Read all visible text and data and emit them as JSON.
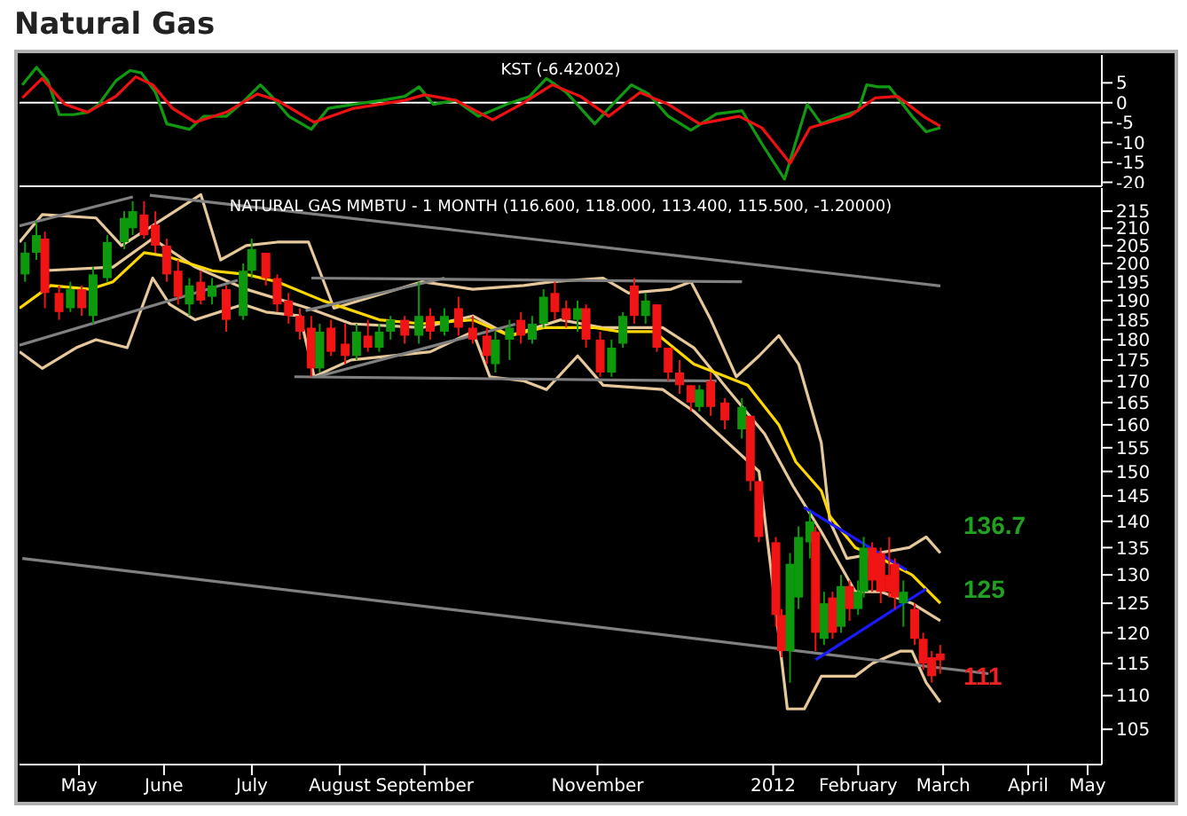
{
  "chart_data": [
    {
      "type": "line",
      "title": "Natural Gas",
      "annotations": [
        "KST (-6.42002)"
      ],
      "tick_labels": "y",
      "xlim": [
        "2011-04-25",
        "2012-05-11"
      ],
      "ylim": [
        -21,
        12
      ],
      "yticks": [
        5,
        0,
        -5,
        -10,
        -15,
        -20
      ],
      "ref_lines": [
        {
          "axis": "y",
          "value": 0,
          "color": "#ffffff"
        }
      ],
      "series": [
        {
          "color": "#119911",
          "x": [
            "2011-04-26",
            "2011-05-01",
            "2011-05-05",
            "2011-05-09",
            "2011-05-14",
            "2011-05-19",
            "2011-05-23",
            "2011-05-29",
            "2011-06-03",
            "2011-06-07",
            "2011-06-12",
            "2011-06-16",
            "2011-06-24",
            "2011-06-29",
            "2011-07-07",
            "2011-07-12",
            "2011-07-19",
            "2011-07-23",
            "2011-07-29",
            "2011-08-06",
            "2011-08-12",
            "2011-08-21",
            "2011-08-31",
            "2011-09-08",
            "2011-09-13",
            "2011-09-18",
            "2011-09-26",
            "2011-10-04",
            "2011-10-14",
            "2011-10-22",
            "2011-10-28",
            "2011-11-04",
            "2011-11-14",
            "2011-11-19",
            "2011-11-27",
            "2011-12-03",
            "2011-12-10",
            "2011-12-18",
            "2011-12-27",
            "2012-01-05",
            "2012-01-12",
            "2012-01-20",
            "2012-01-28",
            "2012-02-02",
            "2012-02-09",
            "2012-02-15",
            "2012-02-18",
            "2012-02-22",
            "2012-02-26",
            "2012-03-05",
            "2012-03-10",
            "2012-03-15"
          ],
          "values": [
            4.5,
            8.9,
            5.5,
            -3,
            -3,
            -2.4,
            -0.4,
            5.5,
            8.1,
            7.5,
            2.6,
            -5.3,
            -6.7,
            -3.4,
            -3.4,
            -0.4,
            4.5,
            1.6,
            -3.4,
            -6.7,
            -1.4,
            -0.4,
            0.6,
            1.6,
            4,
            -0.4,
            0.6,
            -3.4,
            -0.4,
            1.6,
            6.1,
            2.6,
            -5.3,
            -1.4,
            4.5,
            2.2,
            -3.4,
            -6.9,
            -2.8,
            -2,
            -10.3,
            -19.2,
            -0.4,
            -5.3,
            -3.4,
            -2,
            4.5,
            4,
            4,
            -3.4,
            -7.3,
            -6.3
          ]
        },
        {
          "color": "#ee1111",
          "x": [
            "2011-04-26",
            "2011-05-03",
            "2011-05-11",
            "2011-05-19",
            "2011-05-29",
            "2011-06-05",
            "2011-06-11",
            "2011-06-18",
            "2011-06-26",
            "2011-07-07",
            "2011-07-18",
            "2011-07-25",
            "2011-08-07",
            "2011-08-21",
            "2011-09-08",
            "2011-09-15",
            "2011-09-26",
            "2011-10-09",
            "2011-10-19",
            "2011-10-30",
            "2011-11-09",
            "2011-11-19",
            "2011-11-30",
            "2011-12-10",
            "2011-12-21",
            "2012-01-04",
            "2012-01-12",
            "2012-01-22",
            "2012-01-29",
            "2012-02-12",
            "2012-02-21",
            "2012-02-29",
            "2012-03-09",
            "2012-03-15"
          ],
          "values": [
            1.2,
            6.1,
            -0.4,
            -2.4,
            1.6,
            6.5,
            4.5,
            -1.4,
            -4.9,
            -2.4,
            2.2,
            0.6,
            -4.9,
            -1.4,
            0.6,
            2,
            0.6,
            -4.3,
            -0.4,
            4.5,
            1.6,
            -3.4,
            2.6,
            -0.4,
            -5.3,
            -3.4,
            -6.3,
            -15.2,
            -6.3,
            -3.4,
            1.2,
            1.6,
            -3.4,
            -5.9
          ]
        }
      ]
    },
    {
      "type": "candlestick",
      "title": "NATURAL GAS MMBTU - 1 MONTH (116.600, 118.000, 113.400, 115.500, -1.20000)",
      "log": true,
      "xlim": [
        "2011-04-25",
        "2012-05-11"
      ],
      "ylim": [
        100,
        222
      ],
      "yticks": [
        105,
        110,
        115,
        120,
        125,
        130,
        135,
        140,
        145,
        150,
        155,
        160,
        165,
        170,
        175,
        180,
        185,
        190,
        195,
        200,
        205,
        210,
        215
      ],
      "xticks": [
        {
          "value": "2011-05-16",
          "label": "May"
        },
        {
          "value": "2011-06-15",
          "label": "June"
        },
        {
          "value": "2011-07-16",
          "label": "July"
        },
        {
          "value": "2011-08-16",
          "label": "August"
        },
        {
          "value": "2011-09-15",
          "label": "September"
        },
        {
          "value": "2011-11-15",
          "label": "November"
        },
        {
          "value": "2012-01-16",
          "label": "2012"
        },
        {
          "value": "2012-02-15",
          "label": "February"
        },
        {
          "value": "2012-03-16",
          "label": "March"
        },
        {
          "value": "2012-04-15",
          "label": "April"
        },
        {
          "value": "2012-05-06",
          "label": "May"
        }
      ],
      "annotations": [
        "136.7",
        "125",
        "111"
      ],
      "x": [
        "2011-04-27",
        "2011-05-01",
        "2011-05-04",
        "2011-05-09",
        "2011-05-13",
        "2011-05-17",
        "2011-05-21",
        "2011-05-26",
        "2011-06-01",
        "2011-06-04",
        "2011-06-08",
        "2011-06-12",
        "2011-06-16",
        "2011-06-20",
        "2011-06-24",
        "2011-06-28",
        "2011-07-02",
        "2011-07-07",
        "2011-07-13",
        "2011-07-16",
        "2011-07-21",
        "2011-07-25",
        "2011-07-29",
        "2011-08-02",
        "2011-08-06",
        "2011-08-09",
        "2011-08-13",
        "2011-08-18",
        "2011-08-22",
        "2011-08-26",
        "2011-08-30",
        "2011-09-03",
        "2011-09-08",
        "2011-09-13",
        "2011-09-17",
        "2011-09-22",
        "2011-09-27",
        "2011-10-02",
        "2011-10-07",
        "2011-10-10",
        "2011-10-15",
        "2011-10-19",
        "2011-10-23",
        "2011-10-27",
        "2011-10-31",
        "2011-11-04",
        "2011-11-08",
        "2011-11-11",
        "2011-11-16",
        "2011-11-20",
        "2011-11-24",
        "2011-11-28",
        "2011-12-02",
        "2011-12-06",
        "2011-12-10",
        "2011-12-14",
        "2011-12-18",
        "2011-12-21",
        "2011-12-25",
        "2011-12-30",
        "2012-01-05",
        "2012-01-08",
        "2012-01-11",
        "2012-01-17",
        "2012-01-19",
        "2012-01-22",
        "2012-01-25",
        "2012-01-29",
        "2012-01-31",
        "2012-02-03",
        "2012-02-06",
        "2012-02-09",
        "2012-02-12",
        "2012-02-15",
        "2012-02-17",
        "2012-02-20",
        "2012-02-23",
        "2012-02-26",
        "2012-02-28",
        "2012-03-02",
        "2012-03-06",
        "2012-03-09",
        "2012-03-12",
        "2012-03-15"
      ],
      "ohlc": [
        [
          197,
          206,
          195,
          203
        ],
        [
          203,
          212,
          201,
          208
        ],
        [
          207,
          209,
          188,
          192
        ],
        [
          192,
          194,
          185,
          187
        ],
        [
          188,
          195,
          187,
          193
        ],
        [
          193,
          194,
          186,
          188
        ],
        [
          186,
          199,
          184,
          197
        ],
        [
          196,
          208,
          195,
          206
        ],
        [
          206,
          215,
          204,
          213
        ],
        [
          210,
          218,
          208,
          215
        ],
        [
          214,
          218,
          207,
          208
        ],
        [
          211,
          215,
          203,
          205
        ],
        [
          205,
          207,
          195,
          197
        ],
        [
          198,
          201,
          189,
          191
        ],
        [
          189,
          196,
          186,
          194
        ],
        [
          195,
          198,
          189,
          190
        ],
        [
          191,
          196,
          189,
          194
        ],
        [
          193,
          194,
          182,
          185
        ],
        [
          186,
          200,
          185,
          198
        ],
        [
          198,
          207,
          196,
          204
        ],
        [
          203,
          203,
          194,
          196
        ],
        [
          196,
          197,
          187,
          189
        ],
        [
          190,
          192,
          184,
          186
        ],
        [
          186,
          188,
          180,
          182
        ],
        [
          183,
          186,
          171,
          173
        ],
        [
          173,
          184,
          172,
          182
        ],
        [
          183,
          185,
          176,
          177
        ],
        [
          179,
          184,
          174,
          176
        ],
        [
          176,
          184,
          175,
          182
        ],
        [
          181,
          185,
          177,
          178
        ],
        [
          178,
          184,
          177,
          182
        ],
        [
          182,
          186,
          180,
          185
        ],
        [
          185,
          186,
          179,
          181
        ],
        [
          181,
          195,
          179,
          186
        ],
        [
          186,
          188,
          180,
          182
        ],
        [
          182,
          188,
          181,
          186
        ],
        [
          188,
          191,
          181,
          183
        ],
        [
          183,
          186,
          179,
          180
        ],
        [
          181,
          183,
          174,
          176
        ],
        [
          174,
          182,
          172,
          180
        ],
        [
          180,
          185,
          175,
          183
        ],
        [
          185,
          187,
          179,
          181
        ],
        [
          180,
          186,
          179,
          184
        ],
        [
          184,
          193,
          183,
          191
        ],
        [
          192,
          195,
          185,
          187
        ],
        [
          188,
          190,
          183,
          185
        ],
        [
          185,
          190,
          182,
          188
        ],
        [
          188,
          189,
          178,
          180
        ],
        [
          180,
          182,
          171,
          172
        ],
        [
          172,
          180,
          171,
          178
        ],
        [
          179,
          187,
          178,
          186
        ],
        [
          194,
          196,
          184,
          186
        ],
        [
          186,
          192,
          184,
          190
        ],
        [
          189,
          189,
          177,
          178
        ],
        [
          178,
          178,
          170,
          172
        ],
        [
          172,
          175,
          167,
          169
        ],
        [
          169,
          169,
          163,
          165
        ],
        [
          164,
          169,
          163,
          168
        ],
        [
          170,
          172,
          162,
          164
        ],
        [
          165,
          166,
          159,
          161
        ],
        [
          159,
          166,
          157,
          164
        ],
        [
          162,
          162,
          146,
          148
        ],
        [
          148,
          148,
          136,
          137
        ],
        [
          136,
          137,
          121,
          123
        ],
        [
          123,
          124,
          116,
          117
        ],
        [
          117,
          134,
          112,
          132
        ],
        [
          126,
          139,
          124,
          137
        ],
        [
          136,
          142,
          133,
          140
        ],
        [
          138,
          139,
          117,
          120
        ],
        [
          119,
          127,
          118,
          125
        ],
        [
          126,
          127,
          119,
          120
        ],
        [
          121,
          130,
          120,
          128
        ],
        [
          128,
          129,
          122,
          124
        ],
        [
          124,
          129,
          123,
          127
        ],
        [
          127,
          137,
          126,
          135
        ],
        [
          135,
          136,
          127,
          129
        ],
        [
          134,
          135,
          125,
          127
        ],
        [
          130,
          137,
          126,
          127
        ],
        [
          132,
          133,
          124,
          126
        ],
        [
          125,
          129,
          121,
          127
        ],
        [
          124,
          125,
          118,
          119
        ],
        [
          119,
          120,
          114,
          115
        ],
        [
          116,
          117,
          112,
          113
        ],
        [
          116.6,
          118,
          113.4,
          115.5
        ]
      ],
      "series": [
        {
          "type": "line",
          "color": "#e6c89a",
          "x": [
            "2011-04-25",
            "2011-05-03",
            "2011-05-22",
            "2011-05-31",
            "2011-06-28",
            "2011-07-05",
            "2011-07-14",
            "2011-07-25",
            "2011-08-05",
            "2011-08-14",
            "2011-09-14",
            "2011-10-02",
            "2011-10-20",
            "2011-10-30",
            "2011-11-17",
            "2011-11-26",
            "2011-12-11",
            "2011-12-18",
            "2011-12-25",
            "2012-01-03",
            "2012-01-11",
            "2012-01-18",
            "2012-01-25",
            "2012-02-02",
            "2012-02-05",
            "2012-02-11",
            "2012-03-04",
            "2012-03-10",
            "2012-03-15"
          ],
          "values": [
            206,
            214,
            213,
            205,
            220,
            201,
            205,
            206,
            206,
            188,
            195,
            193,
            194,
            195,
            196,
            192,
            193,
            195,
            185,
            171,
            176,
            181,
            174,
            156,
            140,
            133,
            135,
            137,
            134
          ]
        },
        {
          "type": "line",
          "color": "#e6c89a",
          "x": [
            "2011-05-03",
            "2011-05-28",
            "2011-06-11",
            "2011-06-26",
            "2011-07-14",
            "2011-08-05",
            "2011-08-20",
            "2011-09-14",
            "2011-10-02",
            "2011-10-15",
            "2011-11-02",
            "2011-11-17",
            "2011-12-08",
            "2011-12-19",
            "2011-12-31",
            "2012-01-13",
            "2012-01-23",
            "2012-02-02",
            "2012-02-14",
            "2012-02-23",
            "2012-03-05",
            "2012-03-15"
          ],
          "values": [
            198,
            199,
            207,
            199,
            193,
            188,
            184,
            183,
            186,
            181,
            185,
            183,
            183,
            178,
            168,
            158,
            147,
            138,
            127,
            127,
            125,
            122
          ]
        },
        {
          "type": "line",
          "color": "#e6c89a",
          "x": [
            "2011-04-25",
            "2011-05-03",
            "2011-05-15",
            "2011-05-22",
            "2011-06-02",
            "2011-06-11",
            "2011-06-17",
            "2011-06-26",
            "2011-07-13",
            "2011-07-21",
            "2011-08-02",
            "2011-08-07",
            "2011-08-20",
            "2011-09-17",
            "2011-10-02",
            "2011-10-08",
            "2011-10-20",
            "2011-10-28",
            "2011-11-08",
            "2011-11-17",
            "2011-12-08",
            "2011-12-19",
            "2012-01-11",
            "2012-01-15",
            "2012-01-21",
            "2012-01-27",
            "2012-02-02",
            "2012-02-14",
            "2012-02-20",
            "2012-03-01",
            "2012-03-05",
            "2012-03-10",
            "2012-03-15"
          ],
          "values": [
            177,
            173,
            178,
            180,
            178,
            196,
            189,
            185,
            189,
            187,
            186,
            171,
            175,
            177,
            182,
            171,
            170,
            168,
            176,
            169,
            168,
            163,
            150,
            132,
            108,
            108,
            113,
            113,
            115,
            117,
            117,
            112,
            109
          ]
        },
        {
          "type": "line",
          "color": "#ffd700",
          "x": [
            "2011-04-25",
            "2011-05-06",
            "2011-05-20",
            "2011-05-28",
            "2011-06-08",
            "2011-06-16",
            "2011-07-02",
            "2011-07-14",
            "2011-07-25",
            "2011-08-10",
            "2011-08-30",
            "2011-09-14",
            "2011-10-02",
            "2011-10-15",
            "2011-10-27",
            "2011-11-14",
            "2011-11-23",
            "2011-12-05",
            "2011-12-19",
            "2012-01-07",
            "2012-01-18",
            "2012-01-24",
            "2012-02-02",
            "2012-02-05",
            "2012-02-14",
            "2012-02-23",
            "2012-03-05",
            "2012-03-15"
          ],
          "values": [
            188,
            194,
            193,
            195,
            203,
            202,
            198,
            197,
            195,
            190,
            185,
            184,
            185,
            181,
            183,
            183,
            182,
            182,
            174,
            169,
            160,
            152,
            146,
            141,
            135,
            133,
            130,
            125
          ]
        },
        {
          "type": "line",
          "color": "#808080",
          "x": [
            "2011-04-25",
            "2011-07-11"
          ],
          "values": [
            178.6,
            195.4
          ]
        },
        {
          "type": "line",
          "color": "#808080",
          "x": [
            "2011-04-25",
            "2011-06-04"
          ],
          "values": [
            210.7,
            219.3
          ]
        },
        {
          "type": "line",
          "color": "#808080",
          "x": [
            "2011-06-10",
            "2012-03-15"
          ],
          "values": [
            219.8,
            193.9
          ]
        },
        {
          "type": "line",
          "color": "#808080",
          "x": [
            "2011-08-06",
            "2012-01-05"
          ],
          "values": [
            196,
            195
          ]
        },
        {
          "type": "line",
          "color": "#808080",
          "x": [
            "2011-07-31",
            "2011-12-27"
          ],
          "values": [
            171,
            170
          ]
        },
        {
          "type": "line",
          "color": "#808080",
          "x": [
            "2011-08-04",
            "2011-09-22"
          ],
          "values": [
            187.4,
            196
          ]
        },
        {
          "type": "line",
          "color": "#808080",
          "x": [
            "2011-08-08",
            "2011-10-17"
          ],
          "values": [
            171,
            183.9
          ]
        },
        {
          "type": "line",
          "color": "#808080",
          "x": [
            "2011-04-26",
            "2012-04-01"
          ],
          "values": [
            133,
            113.4
          ]
        },
        {
          "type": "line",
          "color": "#1a1aff",
          "x": [
            "2012-01-27",
            "2012-03-03"
          ],
          "values": [
            142.7,
            130.9
          ]
        },
        {
          "type": "line",
          "color": "#1a1aff",
          "x": [
            "2012-01-31",
            "2012-03-10"
          ],
          "values": [
            115.6,
            127.5
          ]
        }
      ]
    }
  ]
}
